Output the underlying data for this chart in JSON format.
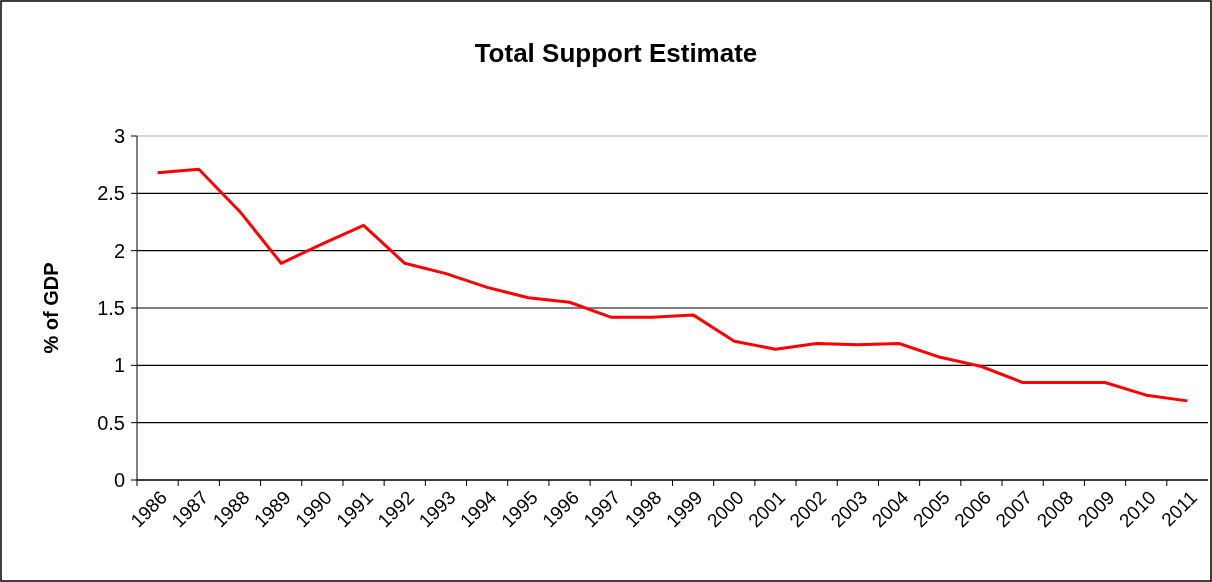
{
  "chart_data": {
    "type": "line",
    "title": "Total Support Estimate",
    "ylabel": "% of GDP",
    "categories": [
      "1986",
      "1987",
      "1988",
      "1989",
      "1990",
      "1991",
      "1992",
      "1993",
      "1994",
      "1995",
      "1996",
      "1997",
      "1998",
      "1999",
      "2000",
      "2001",
      "2002",
      "2003",
      "2004",
      "2005",
      "2006",
      "2007",
      "2008",
      "2009",
      "2010",
      "2011"
    ],
    "series": [
      {
        "color": "#ff0000",
        "values": [
          2.68,
          2.71,
          2.34,
          1.89,
          2.06,
          2.22,
          1.89,
          1.8,
          1.68,
          1.59,
          1.55,
          1.42,
          1.42,
          1.44,
          1.21,
          1.14,
          1.19,
          1.18,
          1.19,
          1.07,
          0.99,
          0.85,
          0.85,
          0.85,
          0.74,
          0.69
        ]
      }
    ],
    "ylim": [
      0,
      3
    ],
    "yticks": [
      0,
      0.5,
      1,
      1.5,
      2,
      2.5,
      3
    ],
    "grid": "y",
    "marker": "none",
    "line_style": "solid"
  }
}
